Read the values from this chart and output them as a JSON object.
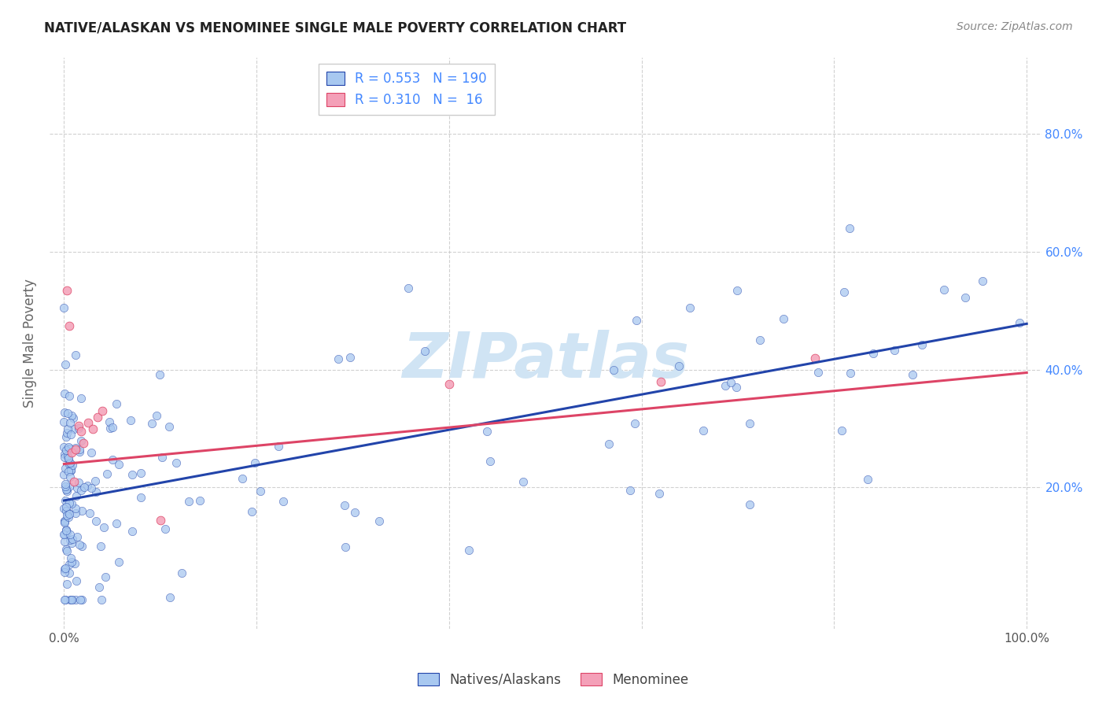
{
  "title": "NATIVE/ALASKAN VS MENOMINEE SINGLE MALE POVERTY CORRELATION CHART",
  "source": "Source: ZipAtlas.com",
  "ylabel": "Single Male Poverty",
  "legend_label1": "Natives/Alaskans",
  "legend_label2": "Menominee",
  "R1": 0.553,
  "N1": 190,
  "R2": 0.31,
  "N2": 16,
  "color_blue": "#a8c8f0",
  "color_pink": "#f4a0b8",
  "line_blue": "#2244aa",
  "line_pink": "#dd4466",
  "scatter_alpha": 0.75,
  "scatter_size": 55,
  "watermark": "ZIPatlas",
  "watermark_color": "#d0e4f4",
  "blue_intercept": 0.18,
  "blue_slope": 0.3,
  "pink_intercept": 0.24,
  "pink_slope": 0.155,
  "ytick_color": "#4488ff",
  "xtick_color": "#555555",
  "grid_color": "#cccccc",
  "title_color": "#222222",
  "source_color": "#888888",
  "ylabel_color": "#666666"
}
